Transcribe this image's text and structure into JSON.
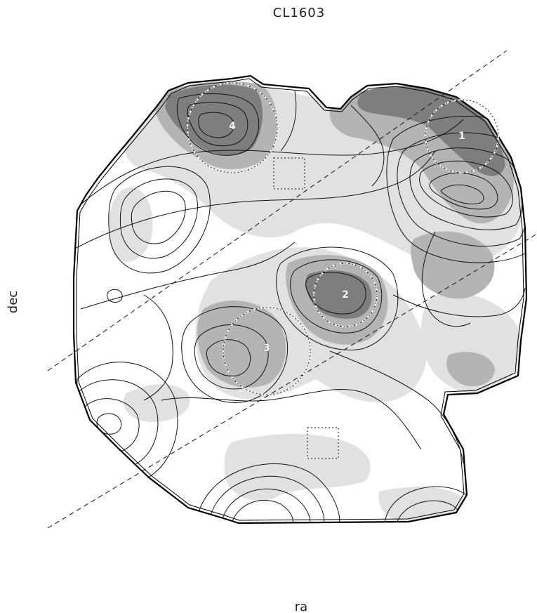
{
  "figure": {
    "title": "CL1603",
    "xlabel": "ra",
    "ylabel": "dec"
  },
  "clusters": [
    {
      "id": "1",
      "label": "1"
    },
    {
      "id": "2",
      "label": "2"
    },
    {
      "id": "3",
      "label": "3"
    },
    {
      "id": "4",
      "label": "4"
    }
  ],
  "legend": {
    "shading_levels": [
      "light gray",
      "medium gray",
      "dark gray"
    ]
  },
  "colors": {
    "light": "#e1e1e1",
    "medium": "#b4b4b4",
    "dark": "#7e7e7e",
    "contour": "#111111",
    "boundary": "#000000"
  }
}
